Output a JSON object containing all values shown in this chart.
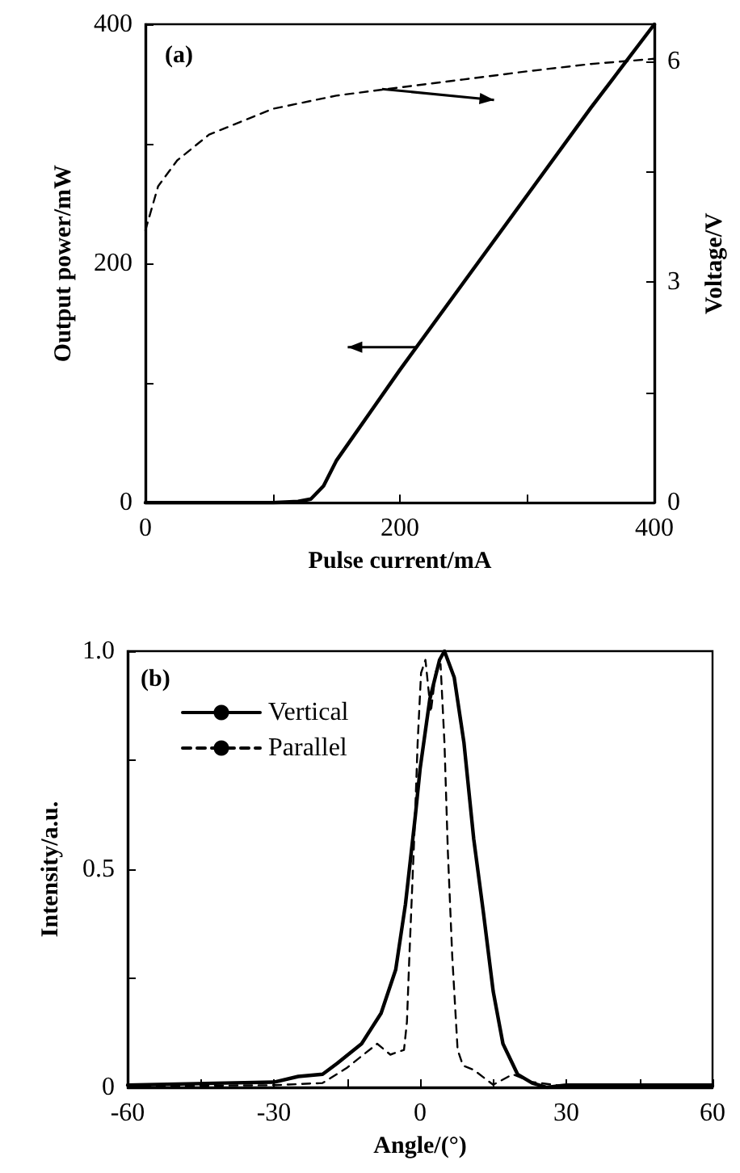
{
  "chart_data": [
    {
      "type": "line",
      "xlabel": "Pulse current/mA",
      "ylabel": "Output power/mW",
      "y2label": "Voltage/V",
      "annotations": [
        "(a)"
      ],
      "xlim": [
        0,
        400
      ],
      "xticks": [
        0,
        {
          "value": 100,
          "label": null
        },
        200,
        {
          "value": 300,
          "label": null
        },
        400
      ],
      "ylim": [
        0,
        400
      ],
      "yticks": [
        0,
        {
          "value": 100,
          "label": null
        },
        200,
        {
          "value": 300,
          "label": null
        },
        400
      ],
      "y2lim": [
        0,
        6.5
      ],
      "y2ticks": [
        0,
        {
          "value": 1.5,
          "label": null
        },
        3,
        {
          "value": 4.5,
          "label": null
        },
        6
      ],
      "grid": false,
      "legend": false,
      "marker": "none",
      "series": [
        {
          "color": "#000000",
          "line_style": "solid",
          "x": [
            0,
            100,
            120,
            130,
            140,
            150,
            200,
            250,
            300,
            350,
            400
          ],
          "values": [
            0,
            0,
            1,
            3,
            14,
            35,
            111,
            184,
            257,
            330,
            400
          ]
        },
        {
          "color": "#000000",
          "line_style": "dashed",
          "axis": "y2",
          "x": [
            0,
            10,
            25,
            50,
            100,
            150,
            190,
            250,
            300,
            350,
            400
          ],
          "values": [
            3.7,
            4.3,
            4.65,
            5.0,
            5.35,
            5.53,
            5.62,
            5.75,
            5.86,
            5.96,
            6.03
          ]
        }
      ]
    },
    {
      "type": "line",
      "xlabel": "Angle/(°)",
      "ylabel": "Intensity/a.u.",
      "annotations": [
        "(b)"
      ],
      "xlim": [
        -60,
        60
      ],
      "xticks": [
        -60,
        {
          "value": -45,
          "label": null
        },
        -30,
        {
          "value": -15,
          "label": null
        },
        0,
        {
          "value": 15,
          "label": null
        },
        30,
        {
          "value": 45,
          "label": null
        },
        60
      ],
      "ylim": [
        0,
        1
      ],
      "yticks": [
        0,
        {
          "value": 0.25,
          "label": null
        },
        0.5,
        {
          "value": 0.75,
          "label": null
        },
        {
          "value": 1,
          "label": "1.0"
        }
      ],
      "grid": false,
      "legend": "top left",
      "marker": "none",
      "series": [
        {
          "name": "Vertical",
          "color": "#000000",
          "line_style": "solid",
          "x": [
            -60,
            -40,
            -30,
            -25,
            -20,
            -17,
            -12,
            -8,
            -5,
            -3,
            -1,
            0,
            2,
            4,
            5,
            7,
            9,
            11,
            13,
            15,
            17,
            20,
            23,
            26,
            30,
            60
          ],
          "values": [
            0.005,
            0.01,
            0.012,
            0.025,
            0.03,
            0.055,
            0.1,
            0.17,
            0.27,
            0.42,
            0.62,
            0.73,
            0.89,
            0.98,
            1,
            0.94,
            0.79,
            0.57,
            0.4,
            0.22,
            0.1,
            0.03,
            0.01,
            0,
            0.005,
            0.005
          ]
        },
        {
          "name": "Parallel",
          "color": "#000000",
          "line_style": "dashed",
          "x": [
            -60,
            -30,
            -20,
            -15,
            -8.8,
            -6.1,
            -3.3,
            -2.7,
            -2.2,
            -1.1,
            -0.5,
            0.2,
            1.1,
            2.2,
            3.3,
            4.2,
            5,
            5.7,
            6.6,
            7.7,
            8.8,
            11,
            15,
            19,
            23,
            28,
            60
          ],
          "values": [
            0.003,
            0.005,
            0.01,
            0.045,
            0.1,
            0.075,
            0.086,
            0.15,
            0.3,
            0.6,
            0.79,
            0.95,
            0.98,
            0.86,
            0.96,
            0.97,
            0.79,
            0.54,
            0.3,
            0.086,
            0.05,
            0.04,
            0.006,
            0.03,
            0.012,
            0.005,
            0.003
          ]
        }
      ]
    }
  ]
}
